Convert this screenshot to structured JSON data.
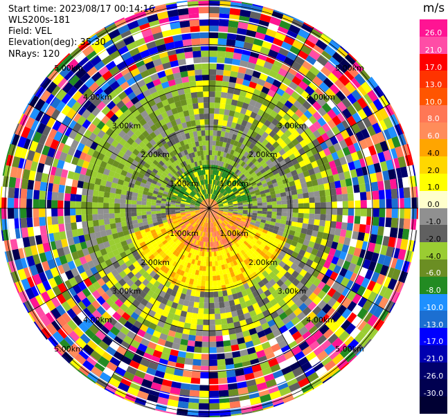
{
  "header": {
    "start_time": "Start time: 2023/08/17 00:14:16",
    "instrument": "WLS200s-181",
    "field": "Field: VEL",
    "elevation": "Elevation(deg): 35.30",
    "nrays": "NRays: 120"
  },
  "colorbar": {
    "unit": "m/s",
    "ticks": [
      "26.0",
      "21.0",
      "17.0",
      "13.0",
      "10.0",
      "8.0",
      "6.0",
      "4.0",
      "2.0",
      "1.0",
      "0.0",
      "-1.0",
      "-2.0",
      "-4.0",
      "-6.0",
      "-8.0",
      "-10.0",
      "-13.0",
      "-17.0",
      "-21.0",
      "-26.0",
      "-30.0"
    ],
    "colors": [
      "#ff1493",
      "#ff4da6",
      "#ff0000",
      "#ff3300",
      "#ff5500",
      "#ff7755",
      "#ff8c5a",
      "#ffa500",
      "#ffd700",
      "#ffff00",
      "#ffffcc",
      "#909090",
      "#606060",
      "#9acd32",
      "#6b8e23",
      "#228b22",
      "#1e90ff",
      "#1c6fd1",
      "#0000ff",
      "#0000b0",
      "#00006b",
      "#000050",
      "#000033"
    ]
  },
  "rings": {
    "labels": [
      "1.00km",
      "2.00km",
      "3.00km",
      "4.00km",
      "5.00km"
    ]
  },
  "scan": {
    "nrays": 120
  }
}
